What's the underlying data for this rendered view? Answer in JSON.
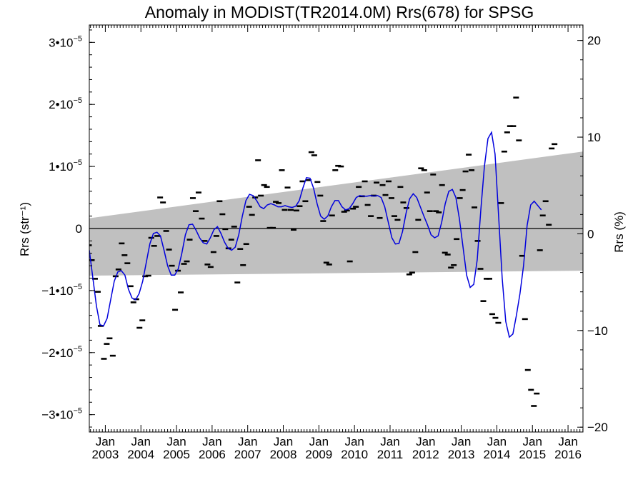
{
  "chart_data": {
    "type": "line",
    "title": "Anomaly in MODIST(TR2014.0M) Rrs(678) for SPSG",
    "ylabel": "Rrs (str⁻¹)",
    "y2label": "Rrs (%)",
    "ylim": [
      -3.28e-05,
      3.28e-05
    ],
    "y2lim": [
      -20.5,
      21.6
    ],
    "xlim": [
      2002.55,
      2016.42
    ],
    "yticks": [
      {
        "value": 3e-05,
        "mant": "3•10",
        "exp": "−5"
      },
      {
        "value": 2e-05,
        "mant": "2•10",
        "exp": "−5"
      },
      {
        "value": 1e-05,
        "mant": "1•10",
        "exp": "−5"
      },
      {
        "value": 0,
        "mant": "0",
        "exp": ""
      },
      {
        "value": -1e-05,
        "mant": "−1•10",
        "exp": "−5"
      },
      {
        "value": -2e-05,
        "mant": "−2•10",
        "exp": "−5"
      },
      {
        "value": -3e-05,
        "mant": "−3•10",
        "exp": "−5"
      }
    ],
    "y2ticks": [
      {
        "value": 20,
        "label": "20"
      },
      {
        "value": 10,
        "label": "10"
      },
      {
        "value": 0,
        "label": "0"
      },
      {
        "value": -10,
        "label": "−10"
      },
      {
        "value": -20,
        "label": "−20"
      }
    ],
    "xticks": [
      {
        "value": 2003,
        "month": "Jan",
        "year": "2003"
      },
      {
        "value": 2004,
        "month": "Jan",
        "year": "2004"
      },
      {
        "value": 2005,
        "month": "Jan",
        "year": "2005"
      },
      {
        "value": 2006,
        "month": "Jan",
        "year": "2006"
      },
      {
        "value": 2007,
        "month": "Jan",
        "year": "2007"
      },
      {
        "value": 2008,
        "month": "Jan",
        "year": "2008"
      },
      {
        "value": 2009,
        "month": "Jan",
        "year": "2009"
      },
      {
        "value": 2010,
        "month": "Jan",
        "year": "2010"
      },
      {
        "value": 2011,
        "month": "Jan",
        "year": "2011"
      },
      {
        "value": 2012,
        "month": "Jan",
        "year": "2012"
      },
      {
        "value": 2013,
        "month": "Jan",
        "year": "2013"
      },
      {
        "value": 2014,
        "month": "Jan",
        "year": "2014"
      },
      {
        "value": 2015,
        "month": "Jan",
        "year": "2015"
      },
      {
        "value": 2016,
        "month": "Jan",
        "year": "2016"
      }
    ],
    "band": {
      "x": [
        2002.55,
        2016.42
      ],
      "lower": [
        -7.6e-06,
        -6.8e-06
      ],
      "upper": [
        1.65e-06,
        1.24e-05
      ],
      "color": "#c0c0c0"
    },
    "monthly_color": "#000000",
    "smooth_color": "#0000dd",
    "monthly": [
      [
        2002.54,
        -2.7e-06
      ],
      [
        2002.62,
        -5.1e-06
      ],
      [
        2002.71,
        -8.1e-06
      ],
      [
        2002.79,
        -1.02e-05
      ],
      [
        2002.87,
        -1.57e-05
      ],
      [
        2002.96,
        -2.1e-05
      ],
      [
        2003.04,
        -1.86e-05
      ],
      [
        2003.12,
        -1.77e-05
      ],
      [
        2003.21,
        -2.05e-05
      ],
      [
        2003.29,
        -7.7e-06
      ],
      [
        2003.37,
        -6.6e-06
      ],
      [
        2003.46,
        -2.4e-06
      ],
      [
        2003.54,
        -4.3e-06
      ],
      [
        2003.62,
        -5.6e-06
      ],
      [
        2003.71,
        -9.3e-06
      ],
      [
        2003.79,
        -1.19e-05
      ],
      [
        2003.87,
        -1.14e-05
      ],
      [
        2003.96,
        -1.6e-05
      ],
      [
        2004.04,
        -1.48e-05
      ],
      [
        2004.12,
        -7.7e-06
      ],
      [
        2004.21,
        -7.6e-06
      ],
      [
        2004.29,
        -1.5e-06
      ],
      [
        2004.37,
        -2.8e-06
      ],
      [
        2004.46,
        -1.2e-06
      ],
      [
        2004.54,
        5e-06
      ],
      [
        2004.62,
        4.2e-06
      ],
      [
        2004.71,
        -4e-07
      ],
      [
        2004.79,
        -3.4e-06
      ],
      [
        2004.87,
        -6e-06
      ],
      [
        2004.96,
        -1.31e-05
      ],
      [
        2005.04,
        -6.8e-06
      ],
      [
        2005.12,
        -1.03e-05
      ],
      [
        2005.21,
        -5.7e-06
      ],
      [
        2005.29,
        -5.3e-06
      ],
      [
        2005.37,
        -1.8e-06
      ],
      [
        2005.46,
        4.9e-06
      ],
      [
        2005.54,
        2.8e-06
      ],
      [
        2005.62,
        5.8e-06
      ],
      [
        2005.71,
        1.6e-06
      ],
      [
        2005.79,
        -2e-06
      ],
      [
        2005.87,
        -5.8e-06
      ],
      [
        2005.96,
        -6.2e-06
      ],
      [
        2006.04,
        -3.8e-06
      ],
      [
        2006.12,
        -1.2e-06
      ],
      [
        2006.21,
        4.4e-06
      ],
      [
        2006.29,
        2.3e-06
      ],
      [
        2006.37,
        -1e-07
      ],
      [
        2006.46,
        -3.2e-06
      ],
      [
        2006.54,
        -1.8e-06
      ],
      [
        2006.62,
        3e-07
      ],
      [
        2006.71,
        -8.7e-06
      ],
      [
        2006.79,
        -3.3e-06
      ],
      [
        2006.87,
        -5.9e-06
      ],
      [
        2006.96,
        -2.5e-06
      ],
      [
        2007.04,
        3.5e-06
      ],
      [
        2007.12,
        2.2e-06
      ],
      [
        2007.21,
        5e-06
      ],
      [
        2007.29,
        1.1e-05
      ],
      [
        2007.37,
        5.3e-06
      ],
      [
        2007.46,
        7e-06
      ],
      [
        2007.54,
        6.7e-06
      ],
      [
        2007.62,
        1e-07
      ],
      [
        2007.71,
        1e-07
      ],
      [
        2007.79,
        4.3e-06
      ],
      [
        2007.87,
        4.1e-06
      ],
      [
        2007.96,
        9.4e-06
      ],
      [
        2008.04,
        3e-06
      ],
      [
        2008.12,
        6.6e-06
      ],
      [
        2008.21,
        3e-06
      ],
      [
        2008.29,
        -2e-07
      ],
      [
        2008.37,
        2.9e-06
      ],
      [
        2008.46,
        3.6e-06
      ],
      [
        2008.54,
        7.6e-06
      ],
      [
        2008.62,
        4.4e-06
      ],
      [
        2008.71,
        7.8e-06
      ],
      [
        2008.79,
        1.23e-05
      ],
      [
        2008.87,
        1.18e-05
      ],
      [
        2008.96,
        7.5e-06
      ],
      [
        2009.04,
        5.3e-06
      ],
      [
        2009.12,
        1.2e-06
      ],
      [
        2009.21,
        -5.5e-06
      ],
      [
        2009.29,
        -5.8e-06
      ],
      [
        2009.37,
        2.1e-06
      ],
      [
        2009.46,
        9.4e-06
      ],
      [
        2009.54,
        1.01e-05
      ],
      [
        2009.62,
        1e-05
      ],
      [
        2009.71,
        2.7e-06
      ],
      [
        2009.79,
        2.9e-06
      ],
      [
        2009.87,
        -5.3e-06
      ],
      [
        2009.96,
        3.2e-06
      ],
      [
        2010.04,
        3.5e-06
      ],
      [
        2010.12,
        6.7e-06
      ],
      [
        2010.21,
        5.2e-06
      ],
      [
        2010.29,
        7.6e-06
      ],
      [
        2010.37,
        3.8e-06
      ],
      [
        2010.46,
        2e-06
      ],
      [
        2010.54,
        5.3e-06
      ],
      [
        2010.62,
        7.4e-06
      ],
      [
        2010.71,
        1.7e-06
      ],
      [
        2010.79,
        7e-06
      ],
      [
        2010.87,
        5.4e-06
      ],
      [
        2010.96,
        7.6e-06
      ],
      [
        2011.04,
        4.9e-06
      ],
      [
        2011.12,
        2e-06
      ],
      [
        2011.21,
        1.4e-06
      ],
      [
        2011.29,
        6.7e-06
      ],
      [
        2011.37,
        4.2e-06
      ],
      [
        2011.46,
        3.3e-06
      ],
      [
        2011.54,
        -7.4e-06
      ],
      [
        2011.62,
        -7.1e-06
      ],
      [
        2011.71,
        -3.8e-06
      ],
      [
        2011.79,
        1.4e-06
      ],
      [
        2011.87,
        9.7e-06
      ],
      [
        2011.96,
        9.4e-06
      ],
      [
        2012.04,
        5.8e-06
      ],
      [
        2012.12,
        2.8e-06
      ],
      [
        2012.21,
        8.7e-06
      ],
      [
        2012.29,
        2.8e-06
      ],
      [
        2012.37,
        2.6e-06
      ],
      [
        2012.46,
        7e-06
      ],
      [
        2012.54,
        -3.9e-06
      ],
      [
        2012.62,
        -4.2e-06
      ],
      [
        2012.71,
        -6.3e-06
      ],
      [
        2012.79,
        -5.9e-06
      ],
      [
        2012.87,
        -1.7e-06
      ],
      [
        2012.96,
        4.9e-06
      ],
      [
        2013.04,
        6.2e-06
      ],
      [
        2013.12,
        9.2e-06
      ],
      [
        2013.21,
        1.19e-05
      ],
      [
        2013.29,
        9.4e-06
      ],
      [
        2013.37,
        3.4e-06
      ],
      [
        2013.46,
        -2e-06
      ],
      [
        2013.54,
        -6.5e-06
      ],
      [
        2013.62,
        -1.17e-05
      ],
      [
        2013.71,
        -8.1e-06
      ],
      [
        2013.79,
        -8.1e-06
      ],
      [
        2013.87,
        -1.38e-05
      ],
      [
        2013.96,
        -1.44e-05
      ],
      [
        2014.04,
        -1.52e-05
      ],
      [
        2014.12,
        4.1e-06
      ],
      [
        2014.21,
        1.24e-05
      ],
      [
        2014.29,
        1.55e-05
      ],
      [
        2014.37,
        1.65e-05
      ],
      [
        2014.46,
        1.65e-05
      ],
      [
        2014.54,
        2.11e-05
      ],
      [
        2014.62,
        1.42e-05
      ],
      [
        2014.71,
        -4.4e-06
      ],
      [
        2014.79,
        -1.46e-05
      ],
      [
        2014.87,
        -2.28e-05
      ],
      [
        2014.96,
        -2.6e-05
      ],
      [
        2015.04,
        -2.86e-05
      ],
      [
        2015.12,
        -2.66e-05
      ],
      [
        2015.21,
        -3.5e-06
      ],
      [
        2015.29,
        2.1e-06
      ],
      [
        2015.37,
        4.4e-06
      ],
      [
        2015.46,
        6e-07
      ],
      [
        2015.54,
        1.29e-05
      ],
      [
        2015.62,
        1.36e-05
      ]
    ],
    "smooth": [
      [
        2002.55,
        -3.5e-06
      ],
      [
        2002.65,
        -8e-06
      ],
      [
        2002.75,
        -1.25e-05
      ],
      [
        2002.85,
        -1.55e-05
      ],
      [
        2002.95,
        -1.57e-05
      ],
      [
        2003.05,
        -1.45e-05
      ],
      [
        2003.15,
        -1.15e-05
      ],
      [
        2003.25,
        -8.5e-06
      ],
      [
        2003.35,
        -7e-06
      ],
      [
        2003.45,
        -6.8e-06
      ],
      [
        2003.55,
        -7.5e-06
      ],
      [
        2003.65,
        -9.8e-06
      ],
      [
        2003.75,
        -1.12e-05
      ],
      [
        2003.85,
        -1.15e-05
      ],
      [
        2003.95,
        -1.05e-05
      ],
      [
        2004.05,
        -8.5e-06
      ],
      [
        2004.15,
        -5.5e-06
      ],
      [
        2004.25,
        -2.5e-06
      ],
      [
        2004.35,
        -8e-07
      ],
      [
        2004.45,
        -6e-07
      ],
      [
        2004.55,
        -1.2e-06
      ],
      [
        2004.65,
        -3.5e-06
      ],
      [
        2004.75,
        -6e-06
      ],
      [
        2004.85,
        -7.5e-06
      ],
      [
        2004.95,
        -7.5e-06
      ],
      [
        2005.05,
        -6.5e-06
      ],
      [
        2005.15,
        -4e-06
      ],
      [
        2005.25,
        -1e-06
      ],
      [
        2005.35,
        6e-07
      ],
      [
        2005.45,
        7e-07
      ],
      [
        2005.55,
        -3e-07
      ],
      [
        2005.65,
        -1.5e-06
      ],
      [
        2005.75,
        -2.3e-06
      ],
      [
        2005.85,
        -2.5e-06
      ],
      [
        2005.95,
        -1.5e-06
      ],
      [
        2006.05,
        -2e-07
      ],
      [
        2006.15,
        3e-07
      ],
      [
        2006.25,
        -8e-07
      ],
      [
        2006.35,
        -2.2e-06
      ],
      [
        2006.45,
        -3.2e-06
      ],
      [
        2006.55,
        -3.5e-06
      ],
      [
        2006.65,
        -3e-06
      ],
      [
        2006.75,
        -1e-06
      ],
      [
        2006.85,
        2e-06
      ],
      [
        2006.95,
        4.5e-06
      ],
      [
        2007.05,
        5.5e-06
      ],
      [
        2007.15,
        5.3e-06
      ],
      [
        2007.25,
        4.5e-06
      ],
      [
        2007.35,
        3.5e-06
      ],
      [
        2007.45,
        3.2e-06
      ],
      [
        2007.55,
        3.8e-06
      ],
      [
        2007.65,
        4e-06
      ],
      [
        2007.75,
        3.8e-06
      ],
      [
        2007.85,
        3.5e-06
      ],
      [
        2007.95,
        3.5e-06
      ],
      [
        2008.05,
        3.7e-06
      ],
      [
        2008.15,
        3.5e-06
      ],
      [
        2008.25,
        3.4e-06
      ],
      [
        2008.35,
        3.6e-06
      ],
      [
        2008.45,
        4.5e-06
      ],
      [
        2008.55,
        6.5e-06
      ],
      [
        2008.65,
        8.2e-06
      ],
      [
        2008.75,
        8.1e-06
      ],
      [
        2008.85,
        6.5e-06
      ],
      [
        2008.95,
        4e-06
      ],
      [
        2009.05,
        2e-06
      ],
      [
        2009.15,
        1.5e-06
      ],
      [
        2009.25,
        2e-06
      ],
      [
        2009.35,
        3.5e-06
      ],
      [
        2009.45,
        4.5e-06
      ],
      [
        2009.55,
        4.5e-06
      ],
      [
        2009.65,
        3.5e-06
      ],
      [
        2009.75,
        3e-06
      ],
      [
        2009.85,
        3.2e-06
      ],
      [
        2009.95,
        4e-06
      ],
      [
        2010.05,
        5e-06
      ],
      [
        2010.15,
        5.3e-06
      ],
      [
        2010.25,
        5.2e-06
      ],
      [
        2010.35,
        5.2e-06
      ],
      [
        2010.45,
        5.3e-06
      ],
      [
        2010.55,
        5.2e-06
      ],
      [
        2010.65,
        5.3e-06
      ],
      [
        2010.75,
        5e-06
      ],
      [
        2010.85,
        3.5e-06
      ],
      [
        2010.95,
        1e-06
      ],
      [
        2011.05,
        -1.5e-06
      ],
      [
        2011.15,
        -2.5e-06
      ],
      [
        2011.25,
        -2.4e-06
      ],
      [
        2011.35,
        -5e-07
      ],
      [
        2011.45,
        2.5e-06
      ],
      [
        2011.55,
        4.8e-06
      ],
      [
        2011.65,
        5.6e-06
      ],
      [
        2011.75,
        5e-06
      ],
      [
        2011.85,
        3.5e-06
      ],
      [
        2011.95,
        2e-06
      ],
      [
        2012.05,
        6e-07
      ],
      [
        2012.15,
        -1e-06
      ],
      [
        2012.25,
        -1.5e-06
      ],
      [
        2012.35,
        -1.2e-06
      ],
      [
        2012.45,
        1e-06
      ],
      [
        2012.55,
        4e-06
      ],
      [
        2012.65,
        6e-06
      ],
      [
        2012.75,
        6.3e-06
      ],
      [
        2012.85,
        5e-06
      ],
      [
        2012.95,
        1.5e-06
      ],
      [
        2013.05,
        -3e-06
      ],
      [
        2013.15,
        -7.5e-06
      ],
      [
        2013.25,
        -9.5e-06
      ],
      [
        2013.35,
        -9e-06
      ],
      [
        2013.45,
        -5e-06
      ],
      [
        2013.55,
        3e-06
      ],
      [
        2013.65,
        1e-05
      ],
      [
        2013.75,
        1.45e-05
      ],
      [
        2013.85,
        1.55e-05
      ],
      [
        2013.95,
        1.2e-05
      ],
      [
        2014.05,
        2e-06
      ],
      [
        2014.15,
        -8e-06
      ],
      [
        2014.25,
        -1.5e-05
      ],
      [
        2014.35,
        -1.75e-05
      ],
      [
        2014.45,
        -1.7e-05
      ],
      [
        2014.55,
        -1.4e-05
      ],
      [
        2014.65,
        -1.05e-05
      ],
      [
        2014.75,
        -6e-06
      ],
      [
        2014.85,
        5e-07
      ],
      [
        2014.95,
        3.8e-06
      ],
      [
        2015.05,
        4.4e-06
      ],
      [
        2015.15,
        3.7e-06
      ],
      [
        2015.25,
        3e-06
      ]
    ]
  }
}
